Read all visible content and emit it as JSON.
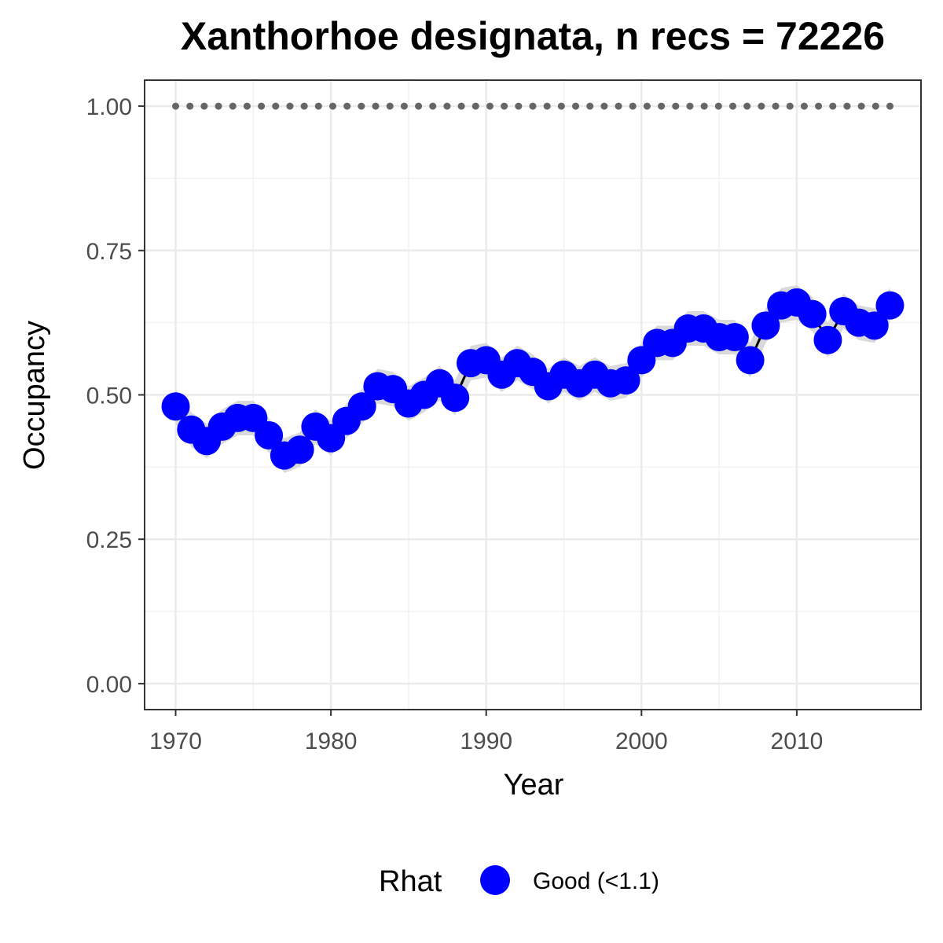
{
  "chart_data": {
    "type": "line",
    "title": "Xanthorhoe designata, n recs = 72226",
    "xlabel": "Year",
    "ylabel": "Occupancy",
    "xlim": [
      1968,
      2018
    ],
    "ylim": [
      -0.045,
      1.045
    ],
    "x_ticks": [
      1970,
      1980,
      1990,
      2000,
      2010
    ],
    "x_tick_labels": [
      "1970",
      "1980",
      "1990",
      "2000",
      "2010"
    ],
    "y_ticks": [
      0,
      0.25,
      0.5,
      0.75,
      1.0
    ],
    "y_tick_labels": [
      "0.00",
      "0.25",
      "0.50",
      "0.75",
      "1.00"
    ],
    "grid": true,
    "legend": {
      "title": "Rhat",
      "position": "bottom",
      "entries": [
        {
          "label": "Good (<1.1)",
          "color": "#0000ff"
        }
      ]
    },
    "colors": {
      "points": "#0000ff",
      "line": "#000000",
      "band": "#d9d9d9",
      "reference": "#666666"
    },
    "reference_line": {
      "y": 1.0,
      "style": "dotted"
    },
    "x": [
      1970,
      1971,
      1972,
      1973,
      1974,
      1975,
      1976,
      1977,
      1978,
      1979,
      1980,
      1981,
      1982,
      1983,
      1984,
      1985,
      1986,
      1987,
      1988,
      1989,
      1990,
      1991,
      1992,
      1993,
      1994,
      1995,
      1996,
      1997,
      1998,
      1999,
      2000,
      2001,
      2002,
      2003,
      2004,
      2005,
      2006,
      2007,
      2008,
      2009,
      2010,
      2011,
      2012,
      2013,
      2014,
      2015,
      2016
    ],
    "series": [
      {
        "name": "Good (<1.1)",
        "values": [
          0.48,
          0.44,
          0.42,
          0.445,
          0.46,
          0.46,
          0.43,
          0.395,
          0.405,
          0.445,
          0.425,
          0.455,
          0.48,
          0.515,
          0.51,
          0.485,
          0.5,
          0.52,
          0.495,
          0.555,
          0.56,
          0.535,
          0.555,
          0.54,
          0.515,
          0.535,
          0.52,
          0.535,
          0.52,
          0.525,
          0.56,
          0.59,
          0.59,
          0.615,
          0.615,
          0.6,
          0.6,
          0.56,
          0.62,
          0.655,
          0.66,
          0.64,
          0.595,
          0.645,
          0.625,
          0.62,
          0.655
        ]
      }
    ],
    "band_halfwidth": 0.03
  }
}
